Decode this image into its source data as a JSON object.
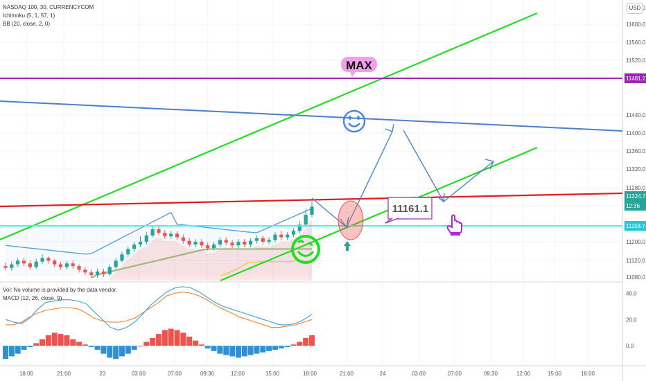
{
  "legend": {
    "symbol": "NASDAQ 100, 30, CURRENCYCOM",
    "ichimoku": "Ichimoku (5, 1, 57, 1)",
    "bb": "BB (20, close, 2, 0)",
    "vol": "Vol: No volume is provided by the data vendor.",
    "macd": "MACD (12, 26, close, 9)"
  },
  "currency_button": "USD",
  "annotations": {
    "max_label": "MAX",
    "target_label": "11161.1"
  },
  "price_axis": {
    "ticks": [
      "11640.0",
      "11600.0",
      "11560.0",
      "11520.0",
      "11440.0",
      "11400.0",
      "11360.0",
      "11320.0",
      "11280.0",
      "11240.0",
      "11200.0",
      "11120.0",
      "11080.0"
    ],
    "badges": [
      {
        "text": "11481.2",
        "color": "#9b27b0"
      },
      {
        "text": "11224.7",
        "color": "#26a69a"
      },
      {
        "text": "12:36",
        "color": "#26a69a"
      },
      {
        "text": "11158.7",
        "color": "#26c6da"
      }
    ]
  },
  "macd_axis": {
    "ticks": [
      "40.0",
      "20.0",
      "0.0"
    ]
  },
  "time_axis": {
    "labels": [
      "18:00",
      "21:00",
      "23",
      "03:00",
      "07:00",
      "09:30",
      "12:00",
      "15:00",
      "18:00",
      "21:00",
      "24",
      "03:00",
      "07:00",
      "09:30",
      "12:00",
      "15:00",
      "18:00"
    ]
  },
  "colors": {
    "up": "#26a69a",
    "down": "#ef5350",
    "green_channel": "#22dd22",
    "blue_line": "#4a7fd0",
    "red_line": "#e01b1b",
    "cyan_line": "#3ef2f2",
    "purple_line": "#9b27b0",
    "arrows": "#4a86c8",
    "bb_band": "#5aa0dc"
  },
  "chart_data": {
    "type": "candlestick",
    "candles": [
      [
        11082,
        11078,
        11090,
        11074
      ],
      [
        11078,
        11086,
        11092,
        11072
      ],
      [
        11086,
        11094,
        11100,
        11080
      ],
      [
        11094,
        11088,
        11100,
        11082
      ],
      [
        11088,
        11080,
        11094,
        11074
      ],
      [
        11080,
        11092,
        11098,
        11076
      ],
      [
        11092,
        11100,
        11108,
        11086
      ],
      [
        11100,
        11094,
        11104,
        11088
      ],
      [
        11094,
        11086,
        11098,
        11080
      ],
      [
        11086,
        11080,
        11092,
        11074
      ],
      [
        11080,
        11088,
        11094,
        11074
      ],
      [
        11088,
        11082,
        11094,
        11076
      ],
      [
        11082,
        11074,
        11086,
        11068
      ],
      [
        11074,
        11068,
        11080,
        11062
      ],
      [
        11068,
        11062,
        11074,
        11056
      ],
      [
        11062,
        11070,
        11076,
        11056
      ],
      [
        11070,
        11064,
        11076,
        11058
      ],
      [
        11064,
        11080,
        11086,
        11060
      ],
      [
        11080,
        11094,
        11100,
        11076
      ],
      [
        11094,
        11108,
        11114,
        11090
      ],
      [
        11108,
        11120,
        11126,
        11102
      ],
      [
        11120,
        11130,
        11136,
        11114
      ],
      [
        11130,
        11136,
        11148,
        11124
      ],
      [
        11136,
        11150,
        11158,
        11130
      ],
      [
        11150,
        11164,
        11172,
        11146
      ],
      [
        11164,
        11156,
        11170,
        11150
      ],
      [
        11156,
        11148,
        11162,
        11142
      ],
      [
        11148,
        11154,
        11160,
        11142
      ],
      [
        11154,
        11146,
        11160,
        11140
      ],
      [
        11146,
        11138,
        11152,
        11132
      ],
      [
        11138,
        11130,
        11144,
        11124
      ],
      [
        11130,
        11136,
        11142,
        11124
      ],
      [
        11136,
        11128,
        11142,
        11122
      ],
      [
        11128,
        11122,
        11134,
        11116
      ],
      [
        11122,
        11130,
        11136,
        11116
      ],
      [
        11130,
        11140,
        11146,
        11124
      ],
      [
        11140,
        11134,
        11146,
        11128
      ],
      [
        11134,
        11128,
        11140,
        11122
      ],
      [
        11128,
        11136,
        11142,
        11122
      ],
      [
        11136,
        11130,
        11142,
        11124
      ],
      [
        11130,
        11138,
        11144,
        11124
      ],
      [
        11138,
        11144,
        11150,
        11132
      ],
      [
        11144,
        11136,
        11150,
        11130
      ],
      [
        11136,
        11140,
        11146,
        11130
      ],
      [
        11140,
        11152,
        11158,
        11134
      ],
      [
        11152,
        11146,
        11160,
        11140
      ],
      [
        11146,
        11152,
        11158,
        11140
      ],
      [
        11152,
        11160,
        11166,
        11146
      ],
      [
        11160,
        11174,
        11182,
        11154
      ],
      [
        11174,
        11196,
        11210,
        11168
      ],
      [
        11196,
        11214,
        11226,
        11190
      ]
    ],
    "ohlc_order": [
      "open",
      "close",
      "high",
      "low"
    ],
    "y_range": [
      11050,
      11660
    ],
    "horizontal_levels": [
      11481.2,
      11158.7
    ],
    "macd": {
      "hist": [
        -10,
        -8,
        -6,
        -3,
        -1,
        2,
        5,
        8,
        10,
        9,
        8,
        5,
        3,
        1,
        -1,
        -3,
        -6,
        -9,
        -10,
        -8,
        -6,
        -3,
        0,
        3,
        6,
        9,
        12,
        13,
        12,
        10,
        7,
        4,
        1,
        -2,
        -4,
        -6,
        -7,
        -8,
        -9,
        -8,
        -7,
        -6,
        -5,
        -4,
        -3,
        -2,
        -1,
        1,
        3,
        6,
        8
      ],
      "macd_line": [
        20,
        18,
        17,
        21,
        28,
        33,
        34,
        35,
        35,
        34,
        32,
        26,
        20,
        14,
        12,
        14,
        18,
        24,
        31,
        36,
        41,
        44,
        45,
        44,
        41,
        37,
        33,
        30,
        28,
        26,
        24,
        22,
        20,
        18,
        16,
        16,
        17,
        20,
        24
      ],
      "signal_line": [
        16,
        16,
        18,
        22,
        25,
        27,
        28,
        29,
        29,
        28,
        25,
        21,
        19,
        18,
        18,
        19,
        21,
        25,
        29,
        33,
        38,
        40,
        41,
        40,
        38,
        35,
        31,
        28,
        25,
        22,
        20,
        18,
        16,
        14,
        14,
        15,
        16,
        18,
        20
      ],
      "y_range": [
        -12,
        47
      ]
    }
  }
}
